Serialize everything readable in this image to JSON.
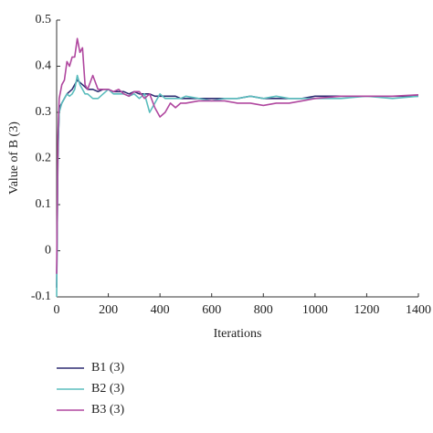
{
  "chart_data": {
    "type": "line",
    "x_label": "Iterations",
    "y_label": "Value of B (3)",
    "x": [
      0,
      5,
      10,
      20,
      30,
      40,
      50,
      60,
      70,
      80,
      90,
      100,
      110,
      120,
      140,
      160,
      180,
      200,
      220,
      240,
      260,
      280,
      300,
      320,
      340,
      360,
      380,
      400,
      420,
      440,
      460,
      480,
      500,
      550,
      600,
      650,
      700,
      750,
      800,
      850,
      900,
      950,
      1000,
      1100,
      1200,
      1300,
      1400
    ],
    "series": [
      {
        "name": "B1 (3)",
        "color": "#2e2c72",
        "values": [
          -0.08,
          0.2,
          0.31,
          0.32,
          0.33,
          0.34,
          0.345,
          0.35,
          0.36,
          0.37,
          0.365,
          0.36,
          0.355,
          0.35,
          0.35,
          0.345,
          0.35,
          0.35,
          0.345,
          0.345,
          0.345,
          0.34,
          0.345,
          0.34,
          0.34,
          0.34,
          0.335,
          0.335,
          0.335,
          0.335,
          0.335,
          0.33,
          0.33,
          0.33,
          0.33,
          0.33,
          0.33,
          0.335,
          0.33,
          0.33,
          0.33,
          0.33,
          0.335,
          0.335,
          0.335,
          0.335,
          0.335
        ]
      },
      {
        "name": "B2 (3)",
        "color": "#5bbdbd",
        "values": [
          -0.1,
          0.22,
          0.3,
          0.32,
          0.33,
          0.34,
          0.335,
          0.34,
          0.35,
          0.38,
          0.36,
          0.35,
          0.34,
          0.34,
          0.33,
          0.33,
          0.34,
          0.35,
          0.34,
          0.34,
          0.34,
          0.335,
          0.34,
          0.33,
          0.34,
          0.3,
          0.32,
          0.34,
          0.33,
          0.33,
          0.33,
          0.33,
          0.335,
          0.33,
          0.325,
          0.33,
          0.33,
          0.335,
          0.33,
          0.335,
          0.33,
          0.33,
          0.33,
          0.33,
          0.335,
          0.33,
          0.335
        ]
      },
      {
        "name": "B3 (3)",
        "color": "#b0479f",
        "values": [
          -0.05,
          0.25,
          0.33,
          0.36,
          0.37,
          0.41,
          0.4,
          0.42,
          0.42,
          0.46,
          0.43,
          0.44,
          0.36,
          0.35,
          0.38,
          0.35,
          0.35,
          0.35,
          0.345,
          0.35,
          0.34,
          0.335,
          0.345,
          0.345,
          0.33,
          0.34,
          0.31,
          0.29,
          0.3,
          0.32,
          0.31,
          0.32,
          0.32,
          0.325,
          0.325,
          0.325,
          0.32,
          0.32,
          0.315,
          0.32,
          0.32,
          0.325,
          0.33,
          0.335,
          0.335,
          0.335,
          0.338
        ]
      }
    ],
    "xlim": [
      0,
      1400
    ],
    "xticks": [
      0,
      200,
      400,
      600,
      800,
      1000,
      1200,
      1400
    ],
    "ylim": [
      -0.1,
      0.5
    ],
    "yticks": [
      -0.1,
      0,
      0.1,
      0.2,
      0.3,
      0.4,
      0.5
    ]
  }
}
